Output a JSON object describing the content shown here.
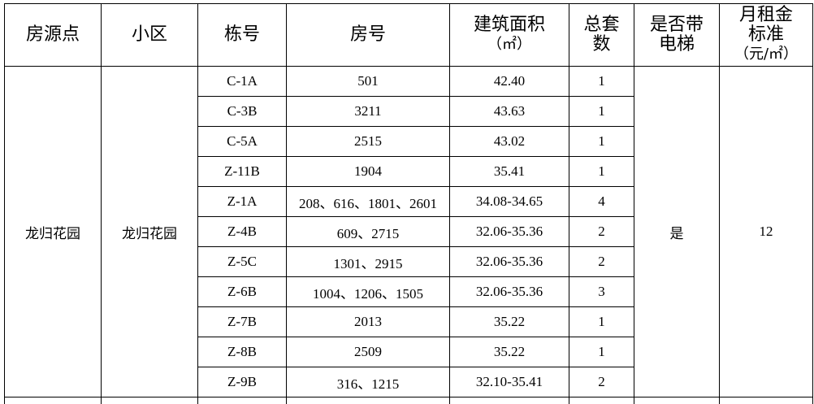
{
  "table": {
    "headers": [
      [
        "房源点"
      ],
      [
        "小区"
      ],
      [
        "栋号"
      ],
      [
        "房号"
      ],
      [
        "建筑面积",
        "（㎡）"
      ],
      [
        "总套",
        "数"
      ],
      [
        "是否带",
        "电梯"
      ],
      [
        "月租金",
        "标准",
        "（元/㎡）"
      ]
    ],
    "site": "龙归花园",
    "community": "龙归花园",
    "elevator": "是",
    "rent": 12,
    "rows": [
      [
        "C-1A",
        "501",
        "42.40",
        1
      ],
      [
        "C-3B",
        "3211",
        "43.63",
        1
      ],
      [
        "C-5A",
        "2515",
        "43.02",
        1
      ],
      [
        "Z-11B",
        "1904",
        "35.41",
        1
      ],
      [
        "Z-1A",
        "208、616、1801、2601",
        "34.08-34.65",
        4
      ],
      [
        "Z-4B",
        "609、2715",
        "32.06-35.36",
        2
      ],
      [
        "Z-5C",
        "1301、2915",
        "32.06-35.36",
        2
      ],
      [
        "Z-6B",
        "1004、1206、1505",
        "32.06-35.36",
        3
      ],
      [
        "Z-7B",
        "2013",
        "35.22",
        1
      ],
      [
        "Z-8B",
        "2509",
        "35.22",
        1
      ],
      [
        "Z-9B",
        "316、1215",
        "32.10-35.41",
        2
      ]
    ]
  }
}
